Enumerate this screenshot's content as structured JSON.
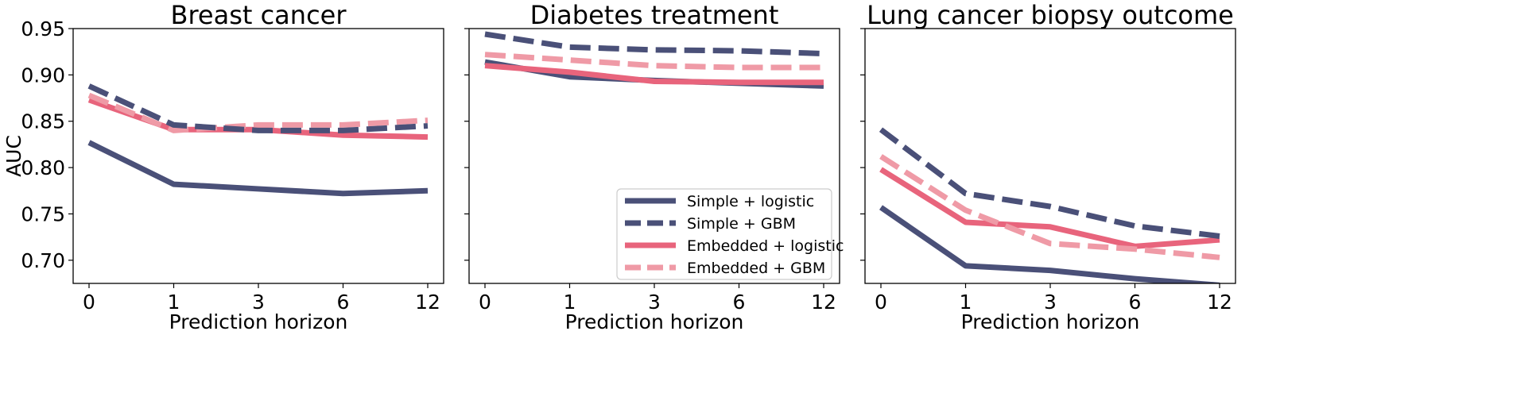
{
  "chart_data": [
    {
      "type": "line",
      "title": "Breast cancer",
      "xlabel": "Prediction horizon",
      "ylabel": "AUC",
      "categories": [
        "0",
        "1",
        "3",
        "6",
        "12"
      ],
      "ylim": [
        0.675,
        0.95
      ],
      "yticks": [
        "0.95",
        "0.90",
        "0.85",
        "0.80",
        "0.75",
        "0.70"
      ],
      "series": [
        {
          "name": "Simple + logistic",
          "values": [
            0.827,
            0.782,
            0.777,
            0.772,
            0.775
          ]
        },
        {
          "name": "Simple + GBM",
          "values": [
            0.888,
            0.846,
            0.84,
            0.84,
            0.845
          ]
        },
        {
          "name": "Embedded + logistic",
          "values": [
            0.873,
            0.841,
            0.841,
            0.835,
            0.833
          ]
        },
        {
          "name": "Embedded + GBM",
          "values": [
            0.878,
            0.84,
            0.846,
            0.846,
            0.851
          ]
        }
      ]
    },
    {
      "type": "line",
      "title": "Diabetes treatment",
      "xlabel": "Prediction horizon",
      "ylabel": "",
      "categories": [
        "0",
        "1",
        "3",
        "6",
        "12"
      ],
      "ylim": [
        0.675,
        0.95
      ],
      "series": [
        {
          "name": "Simple + logistic",
          "values": [
            0.914,
            0.898,
            0.894,
            0.891,
            0.888
          ]
        },
        {
          "name": "Simple + GBM",
          "values": [
            0.944,
            0.93,
            0.927,
            0.926,
            0.923
          ]
        },
        {
          "name": "Embedded + logistic",
          "values": [
            0.91,
            0.903,
            0.893,
            0.892,
            0.892
          ]
        },
        {
          "name": "Embedded + GBM",
          "values": [
            0.922,
            0.916,
            0.91,
            0.908,
            0.908
          ]
        }
      ]
    },
    {
      "type": "line",
      "title": "Lung cancer biopsy outcome",
      "xlabel": "Prediction horizon",
      "ylabel": "",
      "categories": [
        "0",
        "1",
        "3",
        "6",
        "12"
      ],
      "ylim": [
        0.675,
        0.95
      ],
      "series": [
        {
          "name": "Simple + logistic",
          "values": [
            0.757,
            0.694,
            0.689,
            0.68,
            0.673
          ]
        },
        {
          "name": "Simple + GBM",
          "values": [
            0.841,
            0.772,
            0.758,
            0.737,
            0.726
          ]
        },
        {
          "name": "Embedded + logistic",
          "values": [
            0.798,
            0.741,
            0.736,
            0.715,
            0.722
          ]
        },
        {
          "name": "Embedded + GBM",
          "values": [
            0.812,
            0.754,
            0.718,
            0.712,
            0.703
          ]
        }
      ]
    }
  ],
  "styles": {
    "Simple + logistic": {
      "color": "#4a5078",
      "dash": false
    },
    "Simple + GBM": {
      "color": "#4a5078",
      "dash": true
    },
    "Embedded + logistic": {
      "color": "#e8647c",
      "dash": false
    },
    "Embedded + GBM": {
      "color": "#ef9aa6",
      "dash": true
    }
  },
  "legend": {
    "location": "lower-right of panel 2",
    "entries": [
      "Simple + logistic",
      "Simple + GBM",
      "Embedded + logistic",
      "Embedded + GBM"
    ]
  }
}
